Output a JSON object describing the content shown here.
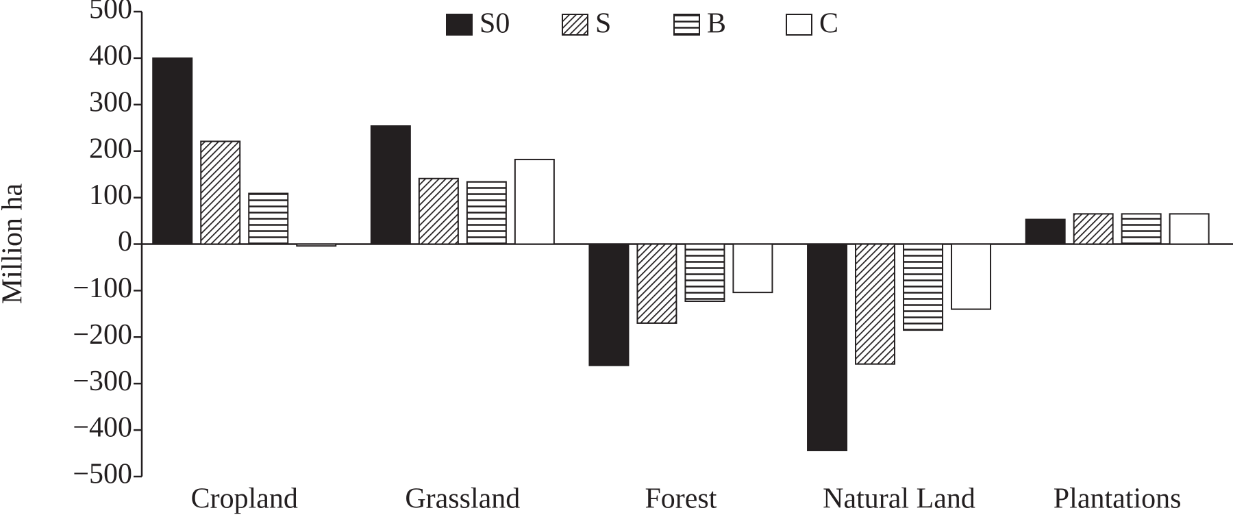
{
  "chart_data": {
    "type": "bar",
    "y_label": "Million ha",
    "categories": [
      "Cropland",
      "Grassland",
      "Forest",
      "Natural Land",
      "Plantations"
    ],
    "series": [
      {
        "name": "S0",
        "color": "#231f20",
        "pattern": "solid",
        "values": [
          400,
          254,
          -261,
          -444,
          53
        ]
      },
      {
        "name": "S",
        "color": "#231f20",
        "pattern": "diagonal",
        "values": [
          221,
          141,
          -170,
          -258,
          65
        ]
      },
      {
        "name": "B",
        "color": "#231f20",
        "pattern": "horizontal",
        "values": [
          109,
          134,
          -123,
          -185,
          65
        ]
      },
      {
        "name": "C",
        "color": "#231f20",
        "pattern": "none",
        "values": [
          -4,
          182,
          -104,
          -140,
          65
        ]
      }
    ],
    "ylim": [
      -500,
      500
    ],
    "yticks": [
      {
        "value": -500,
        "label": "−500"
      },
      {
        "value": -400,
        "label": "−400"
      },
      {
        "value": -300,
        "label": "−300"
      },
      {
        "value": -200,
        "label": "−200"
      },
      {
        "value": -100,
        "label": "−100"
      },
      0,
      100,
      200,
      300,
      400,
      500
    ],
    "grid": false,
    "legend": "top"
  }
}
